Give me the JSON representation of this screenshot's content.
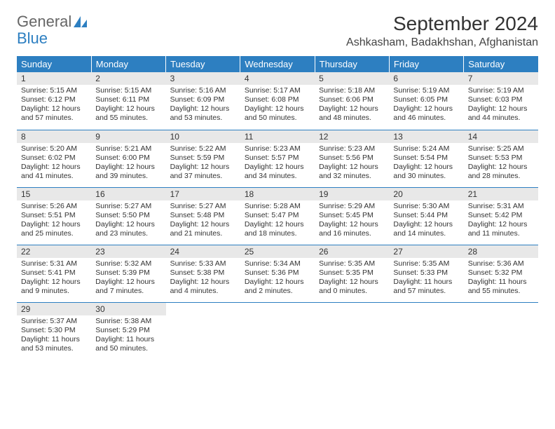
{
  "brand": {
    "part1": "General",
    "part2": "Blue"
  },
  "title": "September 2024",
  "location": "Ashkasham, Badakhshan, Afghanistan",
  "weekdays": [
    "Sunday",
    "Monday",
    "Tuesday",
    "Wednesday",
    "Thursday",
    "Friday",
    "Saturday"
  ],
  "colors": {
    "header_bg": "#2d7fc1",
    "daynum_bg": "#e8e8e8",
    "rule": "#2d7fc1"
  },
  "days": [
    {
      "n": "1",
      "sr": "5:15 AM",
      "ss": "6:12 PM",
      "dh": "12",
      "dm": "57"
    },
    {
      "n": "2",
      "sr": "5:15 AM",
      "ss": "6:11 PM",
      "dh": "12",
      "dm": "55"
    },
    {
      "n": "3",
      "sr": "5:16 AM",
      "ss": "6:09 PM",
      "dh": "12",
      "dm": "53"
    },
    {
      "n": "4",
      "sr": "5:17 AM",
      "ss": "6:08 PM",
      "dh": "12",
      "dm": "50"
    },
    {
      "n": "5",
      "sr": "5:18 AM",
      "ss": "6:06 PM",
      "dh": "12",
      "dm": "48"
    },
    {
      "n": "6",
      "sr": "5:19 AM",
      "ss": "6:05 PM",
      "dh": "12",
      "dm": "46"
    },
    {
      "n": "7",
      "sr": "5:19 AM",
      "ss": "6:03 PM",
      "dh": "12",
      "dm": "44"
    },
    {
      "n": "8",
      "sr": "5:20 AM",
      "ss": "6:02 PM",
      "dh": "12",
      "dm": "41"
    },
    {
      "n": "9",
      "sr": "5:21 AM",
      "ss": "6:00 PM",
      "dh": "12",
      "dm": "39"
    },
    {
      "n": "10",
      "sr": "5:22 AM",
      "ss": "5:59 PM",
      "dh": "12",
      "dm": "37"
    },
    {
      "n": "11",
      "sr": "5:23 AM",
      "ss": "5:57 PM",
      "dh": "12",
      "dm": "34"
    },
    {
      "n": "12",
      "sr": "5:23 AM",
      "ss": "5:56 PM",
      "dh": "12",
      "dm": "32"
    },
    {
      "n": "13",
      "sr": "5:24 AM",
      "ss": "5:54 PM",
      "dh": "12",
      "dm": "30"
    },
    {
      "n": "14",
      "sr": "5:25 AM",
      "ss": "5:53 PM",
      "dh": "12",
      "dm": "28"
    },
    {
      "n": "15",
      "sr": "5:26 AM",
      "ss": "5:51 PM",
      "dh": "12",
      "dm": "25"
    },
    {
      "n": "16",
      "sr": "5:27 AM",
      "ss": "5:50 PM",
      "dh": "12",
      "dm": "23"
    },
    {
      "n": "17",
      "sr": "5:27 AM",
      "ss": "5:48 PM",
      "dh": "12",
      "dm": "21"
    },
    {
      "n": "18",
      "sr": "5:28 AM",
      "ss": "5:47 PM",
      "dh": "12",
      "dm": "18"
    },
    {
      "n": "19",
      "sr": "5:29 AM",
      "ss": "5:45 PM",
      "dh": "12",
      "dm": "16"
    },
    {
      "n": "20",
      "sr": "5:30 AM",
      "ss": "5:44 PM",
      "dh": "12",
      "dm": "14"
    },
    {
      "n": "21",
      "sr": "5:31 AM",
      "ss": "5:42 PM",
      "dh": "12",
      "dm": "11"
    },
    {
      "n": "22",
      "sr": "5:31 AM",
      "ss": "5:41 PM",
      "dh": "12",
      "dm": "9"
    },
    {
      "n": "23",
      "sr": "5:32 AM",
      "ss": "5:39 PM",
      "dh": "12",
      "dm": "7"
    },
    {
      "n": "24",
      "sr": "5:33 AM",
      "ss": "5:38 PM",
      "dh": "12",
      "dm": "4"
    },
    {
      "n": "25",
      "sr": "5:34 AM",
      "ss": "5:36 PM",
      "dh": "12",
      "dm": "2"
    },
    {
      "n": "26",
      "sr": "5:35 AM",
      "ss": "5:35 PM",
      "dh": "12",
      "dm": "0"
    },
    {
      "n": "27",
      "sr": "5:35 AM",
      "ss": "5:33 PM",
      "dh": "11",
      "dm": "57"
    },
    {
      "n": "28",
      "sr": "5:36 AM",
      "ss": "5:32 PM",
      "dh": "11",
      "dm": "55"
    },
    {
      "n": "29",
      "sr": "5:37 AM",
      "ss": "5:30 PM",
      "dh": "11",
      "dm": "53"
    },
    {
      "n": "30",
      "sr": "5:38 AM",
      "ss": "5:29 PM",
      "dh": "11",
      "dm": "50"
    }
  ],
  "labels": {
    "sunrise": "Sunrise: ",
    "sunset": "Sunset: ",
    "daylight": "Daylight: ",
    "hours": " hours",
    "and": "and ",
    "minutes": " minutes."
  }
}
